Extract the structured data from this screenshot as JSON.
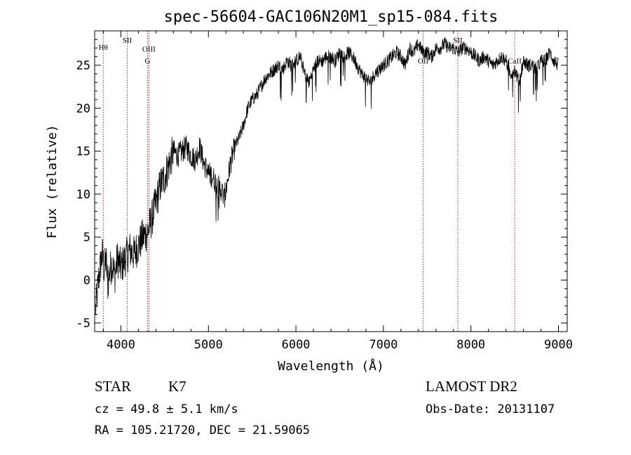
{
  "chart_data": {
    "type": "line",
    "title": "spec-56604-GAC106N20M1_sp15-084.fits",
    "xlabel": "Wavelength (Å)",
    "ylabel": "Flux (relative)",
    "xlim": [
      3700,
      9100
    ],
    "ylim": [
      -6,
      29
    ],
    "x_ticks": [
      4000,
      5000,
      6000,
      7000,
      8000,
      9000
    ],
    "y_ticks": [
      -5,
      0,
      5,
      10,
      15,
      20,
      25
    ],
    "grid": false,
    "legend": "none",
    "spectrum_color": "#000000",
    "marker_color": "#b22222",
    "series": [
      {
        "x": [
          3710,
          3730,
          3750,
          3770,
          3790,
          3810,
          3830,
          3850,
          3870,
          3900,
          3930,
          3960,
          4000,
          4050,
          4100,
          4150,
          4200,
          4250,
          4300,
          4350,
          4400,
          4450,
          4500,
          4550,
          4600,
          4650,
          4700,
          4750,
          4800,
          4850,
          4900,
          4950,
          5000,
          5050,
          5100,
          5150,
          5180,
          5200,
          5250,
          5300,
          5350,
          5400,
          5450,
          5500,
          5550,
          5600,
          5650,
          5700,
          5750,
          5800,
          5850,
          5900,
          5950,
          6000,
          6050,
          6100,
          6150,
          6200,
          6250,
          6300,
          6350,
          6400,
          6450,
          6500,
          6550,
          6600,
          6650,
          6700,
          6750,
          6800,
          6850,
          6900,
          6950,
          7000,
          7050,
          7100,
          7150,
          7200,
          7250,
          7300,
          7350,
          7400,
          7450,
          7500,
          7550,
          7600,
          7650,
          7700,
          7750,
          7800,
          7850,
          7900,
          7950,
          8000,
          8050,
          8100,
          8150,
          8200,
          8250,
          8300,
          8350,
          8400,
          8450,
          8500,
          8550,
          8600,
          8650,
          8700,
          8750,
          8800,
          8850,
          8900,
          8950,
          9000
        ],
        "y": [
          -3.5,
          -1.5,
          0.5,
          2,
          3,
          1,
          2.5,
          -0.5,
          1,
          2,
          0.5,
          2.5,
          1.5,
          2.5,
          3.5,
          3,
          4,
          5,
          5.5,
          7,
          9,
          11,
          12,
          13.5,
          15,
          14.5,
          15,
          15.5,
          14.5,
          14,
          15.5,
          13.5,
          12.5,
          12,
          11,
          10.5,
          9.5,
          10.5,
          13.5,
          15.5,
          16.5,
          18,
          20,
          21,
          21.5,
          22.5,
          23.5,
          24,
          24.5,
          25,
          24.5,
          25.5,
          25,
          25.5,
          26,
          24,
          23,
          24.5,
          25.5,
          25.5,
          26,
          26,
          25.5,
          26.5,
          26,
          26.5,
          26,
          25,
          24,
          23.5,
          23,
          24,
          24.5,
          25,
          25.5,
          26,
          26.5,
          26,
          25,
          27,
          26.5,
          27.5,
          26.5,
          26.5,
          26,
          27,
          27,
          27.5,
          27,
          27,
          26.5,
          27,
          27,
          26.5,
          26,
          25.5,
          26,
          25.5,
          25,
          25.5,
          26,
          25.5,
          24,
          24.5,
          23,
          25.5,
          25,
          25,
          24.5,
          25.5,
          25.5,
          26.5,
          25.5,
          25
        ]
      }
    ],
    "line_markers": [
      {
        "label": "Hθ",
        "wavelength": 3798,
        "label_y": 26.8
      },
      {
        "label": "SII",
        "wavelength": 4072,
        "label_y": 27.6
      },
      {
        "label": "OIII",
        "wavelength": 4320,
        "label_y": 26.6
      },
      {
        "label": "G",
        "wavelength": 4304,
        "label_y": 25.2
      },
      {
        "label": "OII",
        "wavelength": 7454,
        "label_y": 25.2
      },
      {
        "label": "SII",
        "wavelength": 7850,
        "label_y": 27.6
      },
      {
        "label": "CaII",
        "wavelength": 8500,
        "label_y": 25.2
      }
    ]
  },
  "info": {
    "object_class": "STAR",
    "subclass": "K7",
    "velocity": "cz = 49.8 ± 5.1 km/s",
    "coords": "RA = 105.21720, DEC =  21.59065",
    "survey": "LAMOST DR2",
    "obs_date": "Obs-Date: 20131107"
  }
}
